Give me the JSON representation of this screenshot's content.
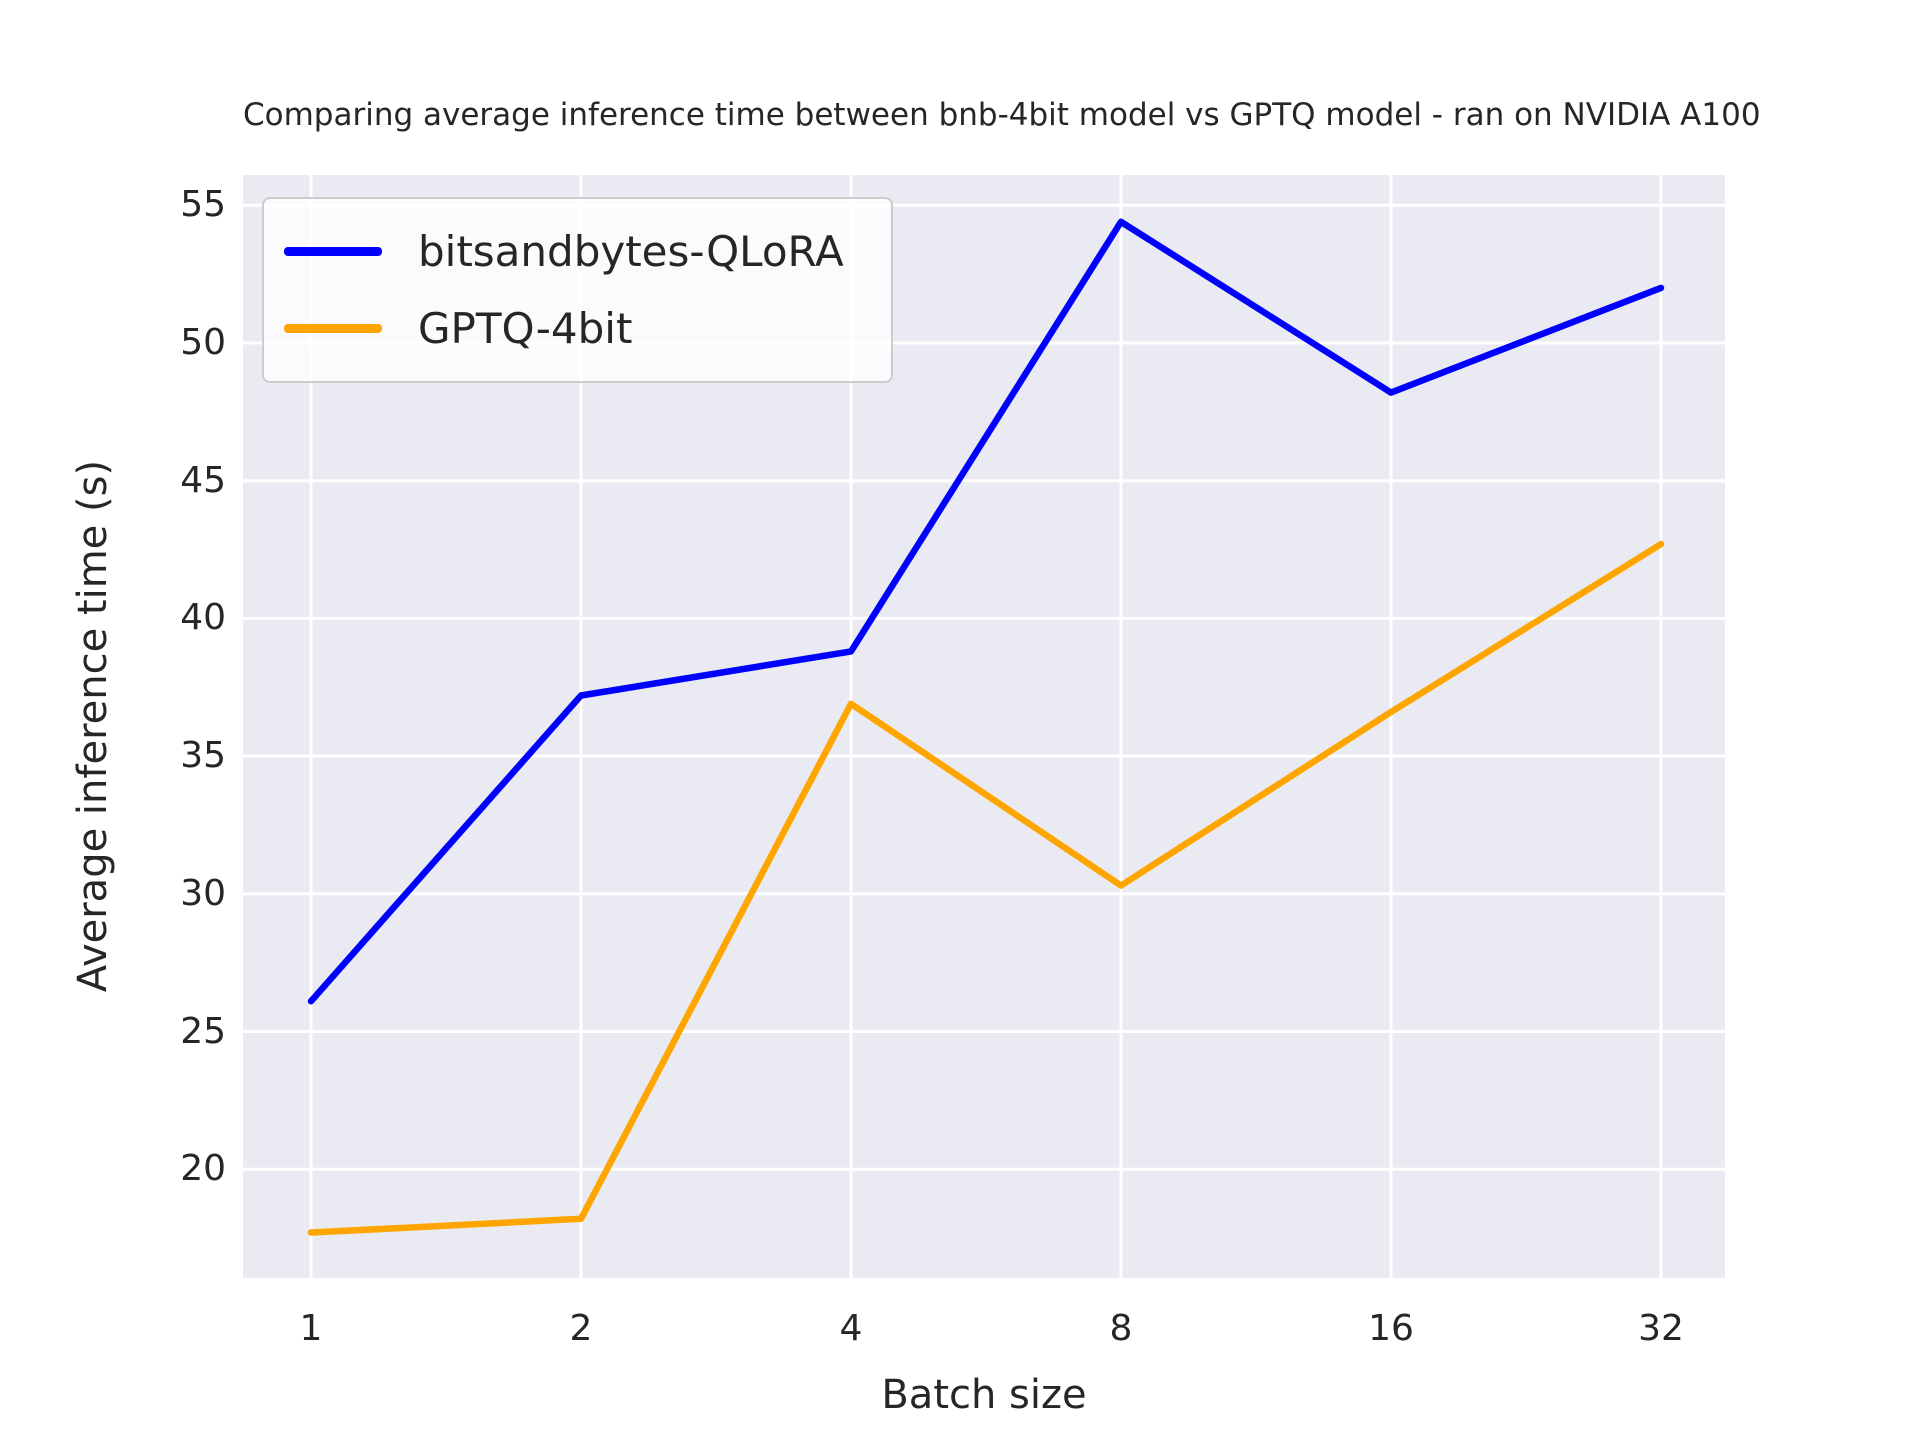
{
  "figure": {
    "background": "#ffffff"
  },
  "chart_data": {
    "type": "line",
    "title": "Comparing average inference time between bnb-4bit model vs GPTQ model - ran on NVIDIA A100",
    "xlabel": "Batch size",
    "ylabel": "Average inference time (s)",
    "x": [
      1,
      2,
      4,
      8,
      16,
      32
    ],
    "x_tick_labels": [
      "1",
      "2",
      "4",
      "8",
      "16",
      "32"
    ],
    "x_scale": "log2",
    "yticks": [
      20,
      25,
      30,
      35,
      40,
      45,
      50,
      55
    ],
    "ylim": [
      16.05,
      56.1
    ],
    "grid": true,
    "legend_position": "upper-left",
    "series": [
      {
        "name": "bitsandbytes-QLoRA",
        "color": "#0000ff",
        "values": [
          26.1,
          37.2,
          38.8,
          54.4,
          48.2,
          52.0
        ]
      },
      {
        "name": "GPTQ-4bit",
        "color": "#ffa500",
        "values": [
          17.7,
          18.2,
          36.9,
          30.3,
          36.6,
          42.7
        ]
      }
    ],
    "style": {
      "plot_background": "#eaeaf2",
      "grid_color": "#ffffff",
      "text_color": "#262626",
      "legend_background": "rgba(255,255,255,0.8)",
      "legend_border": "#cccccc"
    }
  }
}
